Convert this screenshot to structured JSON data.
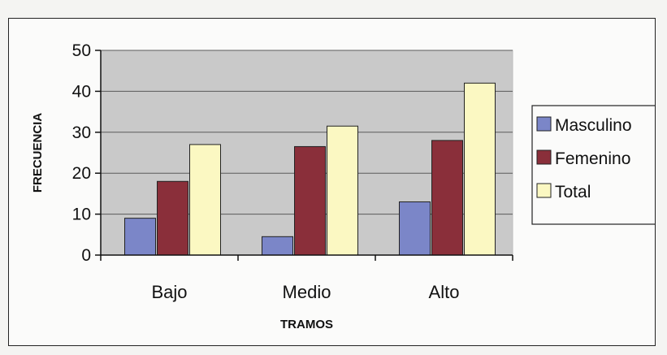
{
  "chart_data": {
    "type": "bar",
    "title": "",
    "xlabel": "TRAMOS",
    "ylabel": "FRECUENCIA",
    "categories": [
      "Bajo",
      "Medio",
      "Alto"
    ],
    "series": [
      {
        "name": "Masculino",
        "values": [
          9,
          4.5,
          13
        ],
        "color": "#7b86c8"
      },
      {
        "name": "Femenino",
        "values": [
          18,
          26.5,
          28
        ],
        "color": "#8a2f3a"
      },
      {
        "name": "Total",
        "values": [
          27,
          31.5,
          42
        ],
        "color": "#fbf8c2"
      }
    ],
    "ylim": [
      0,
      50
    ],
    "yticks": [
      0,
      10,
      20,
      30,
      40,
      50
    ],
    "grid": true,
    "legend": "right",
    "plot_background": "#c9c9c9"
  }
}
